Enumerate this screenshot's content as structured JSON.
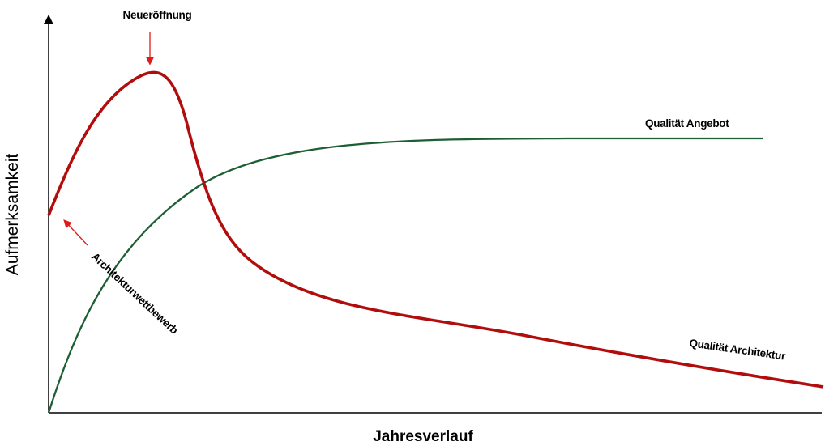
{
  "chart_data": {
    "type": "line",
    "title": "",
    "xlabel": "Jahresverlauf",
    "ylabel": "Aufmerksamkeit",
    "grid": false,
    "legend": "none",
    "axis_ticks": false,
    "series": [
      {
        "name": "Qualität Architektur",
        "color": "#b20d0d"
      },
      {
        "name": "Qualität Angebot",
        "color": "#1d5f34"
      }
    ],
    "annotations": [
      {
        "text": "Neueröffnung",
        "color": "#e31a1a"
      },
      {
        "text": "Architekturwettbewerb",
        "color": "#e31a1a"
      }
    ]
  }
}
